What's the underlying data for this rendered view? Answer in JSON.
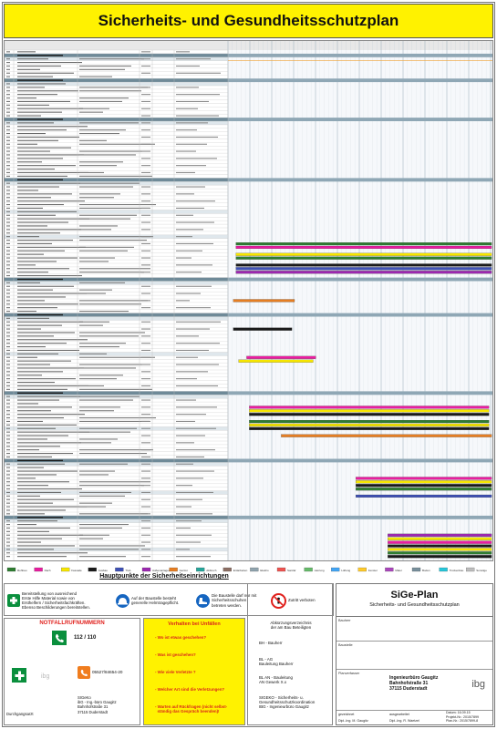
{
  "title": "Sicherheits- und Gesundheitsschutzplan",
  "gantt": {
    "section_rows": [
      {
        "row": 1,
        "label": "Organisation der Baustelle"
      },
      {
        "row": 8,
        "label": "Baustelleneinrichtung"
      },
      {
        "row": 19,
        "label": "Baustelleneinrichtung"
      },
      {
        "row": 36,
        "label": "Rohbauarbeiten"
      },
      {
        "row": 64,
        "label": "Ausbaugewerke"
      },
      {
        "row": 74,
        "label": "Dach"
      },
      {
        "row": 96,
        "label": "Fassade"
      },
      {
        "row": 115,
        "label": "Technischer Ausbau"
      },
      {
        "row": 131,
        "label": "Ausbau 1. OG"
      }
    ],
    "bar_colors": [
      "#2f7d32",
      "#e91ea0",
      "#f7e600",
      "#1a1a1a",
      "#3f51b5",
      "#9c27b0",
      "#e67e22",
      "#26a69a"
    ]
  },
  "legend": [
    "Rohbau",
    "Dach",
    "Fassade",
    "Ausbau",
    "TGA",
    "Außenanlagen",
    "Gerüst",
    "Abbruch",
    "Erdarbeiten",
    "Elektro",
    "Sanitär",
    "Heizung",
    "Lüftung",
    "Fenster",
    "Maler",
    "Boden",
    "Trockenbau",
    "Sonstige"
  ],
  "hauptpunkte_title": "Hauptpunkte der Sicherheitseinrichtungen",
  "signs": [
    {
      "lines": [
        "Bereitstellung von ausreichend",
        "Erste Hilfe Material sowie von",
        "Ersthelfern / Sicherheitsfachkräften.",
        "Ebenso Beschilderungen bereitstellen."
      ]
    },
    {
      "lines": [
        "Auf der Baustelle besteht",
        "generelle Helmtragepflicht."
      ]
    },
    {
      "lines": [
        "Die Baustelle darf nur mit",
        "Sicherheitsschuhen",
        "betreten werden."
      ]
    },
    {
      "lines": [
        "Zutritt verboten"
      ]
    }
  ],
  "notruf": {
    "title": "NOTFALLRUFNUMMERN",
    "emergency_number": "112 / 110",
    "company_phone": "05527/84654-20",
    "first_aid_label": "Durchgangsarzt",
    "company_lines": [
      "SIGeKo",
      "ibG - Ing.-büro Gaugitz",
      "Bahnhofstraße 31",
      "37115 Duderstadt"
    ],
    "watermark": "ibg"
  },
  "verhalten": {
    "title": "Verhalten bei Unfällen",
    "items": [
      "- Wo ist etwas geschehen?",
      "- Was ist geschehen?",
      "- Wie viele Verletzte ?",
      "- Welcher Art sind die Verletzungen?",
      "- Warten auf Rückfragen (nicht selbst-",
      "  ständig das Gespräch beenden)!"
    ]
  },
  "abkuerzungen": {
    "head": [
      "Abkürzungsverzeichnis",
      "der am Bau Beteiligten"
    ],
    "items": [
      [
        "BH - Bauherr"
      ],
      [
        "BL - AG",
        "Bauleitung  Bauherr"
      ],
      [
        "BL AN - Bauleitung",
        "AN Gewerk X.x"
      ],
      [
        "SIGEKO - Sicherheits- u.",
        "Gesundheitsschutzkoordination",
        "IBG - Ingenieurbüro Gaugitz"
      ]
    ]
  },
  "title_block": {
    "plan_title": "SiGe-Plan",
    "plan_subtitle": "Sicherheits- und Gesundheitsschutzplan",
    "row_labels": [
      "Bauherr",
      "Baustelle",
      "Planverfasser"
    ],
    "planner": [
      "Ingenieurbüro Gaugitz",
      "Bahnhofstraße 31",
      "37115 Duderstadt"
    ],
    "logo": "ibg",
    "footer_left": [
      "gezeichnet",
      "Dipl.-Ing. M. Gaugitz"
    ],
    "footer_mid": [
      "ausgearbeitet",
      "Dipl.-Ing. R. Waetzel"
    ],
    "footer_right": [
      "Datum: 16.09.15",
      "Projekt-Nr.: 2015/7899",
      "Plan-Nr.: 2015/7899-8"
    ]
  }
}
